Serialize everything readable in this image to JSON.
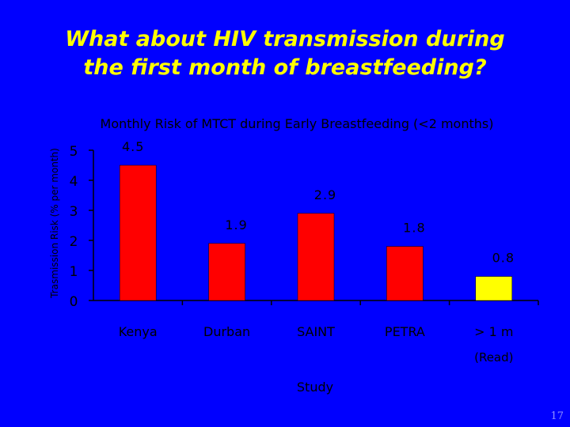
{
  "slide": {
    "title_line1": "What about HIV transmission during",
    "title_line2": "the first month of breastfeeding?",
    "page_number": "17"
  },
  "colors": {
    "background": "#0000ff",
    "title": "#ffff00",
    "text": "#000000",
    "bar_primary": "#ff0000",
    "bar_highlight": "#ffff00"
  },
  "chart_data": {
    "type": "bar",
    "title": "Monthly Risk of MTCT during Early Breastfeeding (<2 months)",
    "xlabel": "Study",
    "ylabel": "Trasmission Risk (% per month)",
    "categories": [
      "Kenya",
      "Durban",
      "SAINT",
      "PETRA",
      "> 1 m"
    ],
    "category_sublabels": [
      "",
      "",
      "",
      "",
      "(Read)"
    ],
    "values": [
      4.5,
      1.9,
      2.9,
      1.8,
      0.8
    ],
    "data_labels": [
      "4.5",
      "1.9",
      "2.9",
      "1.8",
      "0.8"
    ],
    "highlight": [
      false,
      false,
      false,
      false,
      true
    ],
    "ylim": [
      0,
      5
    ],
    "yticks": [
      0,
      1,
      2,
      3,
      4,
      5
    ],
    "grid": false,
    "legend": "none"
  }
}
